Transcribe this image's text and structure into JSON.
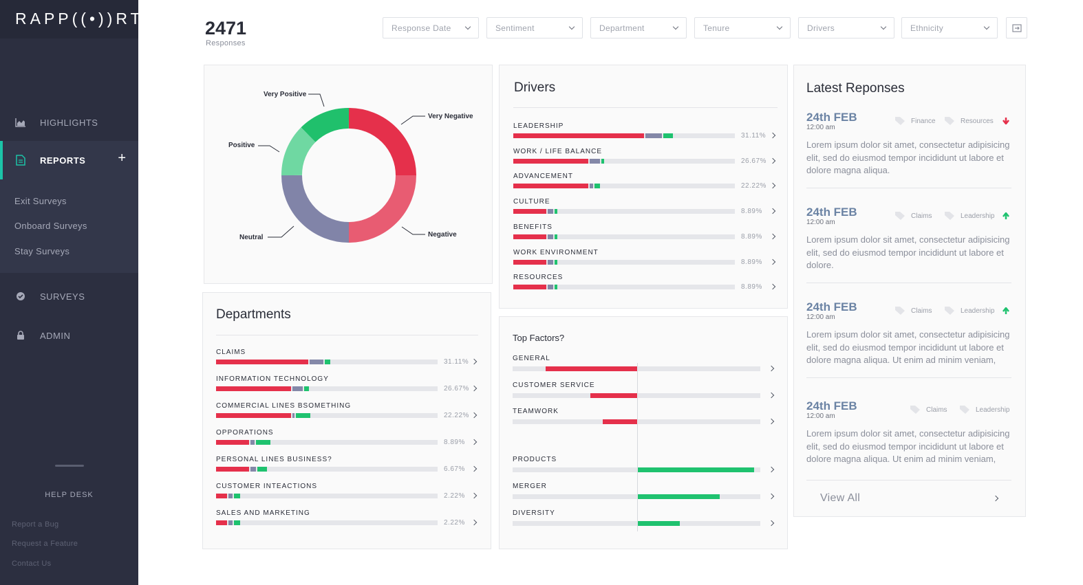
{
  "app": {
    "logo": "RAPP((•))RT"
  },
  "sidebar": {
    "nav": [
      {
        "label": "HIGHLIGHTS",
        "icon": "chart-icon"
      },
      {
        "label": "REPORTS",
        "icon": "document-icon",
        "active": true
      },
      {
        "label": "SURVEYS",
        "icon": "check-circle-icon"
      },
      {
        "label": "ADMIN",
        "icon": "lock-icon"
      }
    ],
    "reports_sub": [
      "Exit Surveys",
      "Onboard Surveys",
      "Stay Surveys"
    ],
    "help_desk": "HELP DESK",
    "footer_links": [
      "Report a Bug",
      "Request a Feature",
      "Contact Us"
    ]
  },
  "header": {
    "count": "2471",
    "count_label": "Responses",
    "filters": [
      "Response Date",
      "Sentiment",
      "Department",
      "Tenure",
      "Drivers",
      "Ethnicity"
    ]
  },
  "sentiment": {
    "labels": {
      "very_positive": "Very Positive",
      "very_negative": "Very Negative",
      "positive": "Positive",
      "negative": "Negative",
      "neutral": "Neutral"
    },
    "colors": {
      "very_negative": "#e5304b",
      "negative": "#e85c72",
      "neutral": "#8184a8",
      "positive": "#6fd8a2",
      "very_positive": "#20c06c"
    }
  },
  "drivers": {
    "title": "Drivers",
    "rows": [
      {
        "label": "LEADERSHIP",
        "pct": "31.11%",
        "red": 0.59,
        "gray": 0.08,
        "green": 0.05
      },
      {
        "label": "WORK / LIFE BALANCE",
        "pct": "26.67%",
        "red": 0.34,
        "gray": 0.05,
        "green": 0.02
      },
      {
        "label": "ADVANCEMENT",
        "pct": "22.22%",
        "red": 0.34,
        "gray": 0.02,
        "green": 0.03
      },
      {
        "label": "CULTURE",
        "pct": "8.89%",
        "red": 0.15,
        "gray": 0.03,
        "green": 0.02
      },
      {
        "label": "BENEFITS",
        "pct": "8.89%",
        "red": 0.15,
        "gray": 0.03,
        "green": 0.02
      },
      {
        "label": "WORK ENVIRONMENT",
        "pct": "8.89%",
        "red": 0.15,
        "gray": 0.03,
        "green": 0.02
      },
      {
        "label": "RESOURCES",
        "pct": "8.89%",
        "red": 0.15,
        "gray": 0.03,
        "green": 0.02
      }
    ]
  },
  "departments": {
    "title": "Departments",
    "rows": [
      {
        "label": "CLAIMS",
        "pct": "31.11%",
        "red": 0.415,
        "gray": 0.07,
        "green": 0.03
      },
      {
        "label": "INFORMATION TECHNOLOGY",
        "pct": "26.67%",
        "red": 0.34,
        "gray": 0.05,
        "green": 0.03
      },
      {
        "label": "COMMERCIAL LINES BSOMETHING",
        "pct": "22.22%",
        "red": 0.34,
        "gray": 0.015,
        "green": 0.07
      },
      {
        "label": "OPPORATIONS",
        "pct": "8.89%",
        "red": 0.15,
        "gray": 0.025,
        "green": 0.07
      },
      {
        "label": "PERSONAL LINES BUSINESS?",
        "pct": "6.67%",
        "red": 0.15,
        "gray": 0.03,
        "green": 0.05
      },
      {
        "label": "CUSTOMER INTEACTIONS",
        "pct": "2.22%",
        "red": 0.05,
        "gray": 0.025,
        "green": 0.035
      },
      {
        "label": "SALES AND MARKETING",
        "pct": "2.22%",
        "red": 0.05,
        "gray": 0.025,
        "green": 0.035
      }
    ]
  },
  "top_factors": {
    "title": "Top Factors?",
    "negative": [
      {
        "label": "GENERAL",
        "value": 0.37
      },
      {
        "label": "CUSTOMER SERVICE",
        "value": 0.19
      },
      {
        "label": "TEAMWORK",
        "value": 0.14
      }
    ],
    "positive": [
      {
        "label": "PRODUCTS",
        "value": 0.47
      },
      {
        "label": "MERGER",
        "value": 0.33
      },
      {
        "label": "DIVERSITY",
        "value": 0.17
      }
    ]
  },
  "latest": {
    "title": "Latest Reponses",
    "items": [
      {
        "date": "24th FEB",
        "time": "12:00 am",
        "tags": [
          "Finance",
          "Resources"
        ],
        "trend": "down",
        "text": "Lorem ipsum dolor sit amet, consectetur adipisicing elit, sed do eiusmod tempor incididunt ut labore et dolore magna aliqua."
      },
      {
        "date": "24th FEB",
        "time": "12:00 am",
        "tags": [
          "Claims",
          "Leadership"
        ],
        "trend": "up",
        "text": "Lorem ipsum dolor sit amet, consectetur adipisicing elit, sed do eiusmod tempor incididunt ut labore et dolore."
      },
      {
        "date": "24th FEB",
        "time": "12:00 am",
        "tags": [
          "Claims",
          "Leadership"
        ],
        "trend": "up",
        "text": "Lorem ipsum dolor sit amet, consectetur adipisicing elit, sed do eiusmod tempor incididunt ut labore et dolore magna aliqua. Ut enim ad minim veniam,"
      },
      {
        "date": "24th FEB",
        "time": "12:00 am",
        "tags": [
          "Claims",
          "Leadership"
        ],
        "trend": "none",
        "text": "Lorem ipsum dolor sit amet, consectetur adipisicing elit, sed do eiusmod tempor incididunt ut labore et dolore magna aliqua. Ut enim ad minim veniam,"
      }
    ],
    "view_all": "View All"
  }
}
